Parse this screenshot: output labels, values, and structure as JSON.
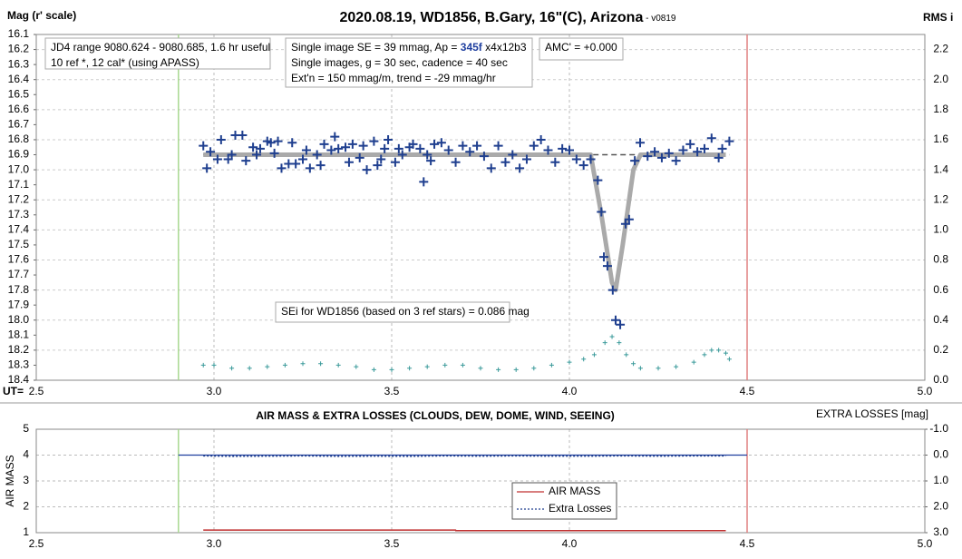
{
  "chart_data": [
    {
      "type": "scatter",
      "title": "2020.08.19, WD1856, B.Gary, 16\"(C), Arizona",
      "subtitle": " - v0819",
      "y_label": "Mag (r' scale)",
      "y2_label": "RMS i",
      "x_label": "UT=",
      "xlim": [
        2.5,
        5.0
      ],
      "xticks": [
        2.5,
        {
          "value": 3,
          "label": "3.0"
        },
        3.5,
        {
          "value": 4,
          "label": "4.0"
        },
        4.5,
        {
          "value": 5,
          "label": "5.0"
        }
      ],
      "ylim": [
        16.1,
        18.4
      ],
      "y_inverted": true,
      "yticks": [
        16.1,
        16.2,
        16.3,
        16.4,
        16.5,
        16.6,
        16.7,
        16.8,
        16.9,
        {
          "value": 17,
          "label": "17.0"
        },
        17.1,
        17.2,
        17.3,
        17.4,
        17.5,
        17.6,
        17.7,
        17.8,
        17.9,
        {
          "value": 18,
          "label": "18.0"
        },
        18.1,
        18.2,
        18.3,
        18.4
      ],
      "y2lim": [
        0,
        2.3
      ],
      "y2ticks": [
        {
          "value": 0,
          "label": "0.0"
        },
        0.2,
        0.4,
        0.6,
        0.8,
        {
          "value": 1,
          "label": "1.0"
        },
        1.2,
        1.4,
        1.6,
        1.8,
        {
          "value": 2,
          "label": "2.0"
        },
        2.2
      ],
      "grid": "y2",
      "vlines": [
        {
          "value": 2.9,
          "color": "#a8d890"
        },
        {
          "value": 4.5,
          "color": "#e08080"
        }
      ],
      "annotations": [
        {
          "lines": [
            [
              "JD4 range 9080.624 - 9080.685, 1.6 hr useful"
            ],
            [
              " 10 ref *, 12 cal* (using APASS)"
            ]
          ]
        },
        {
          "lines": [
            [
              "Single image SE = 39 mmag, Ap = ",
              "345f",
              " x4x12b3"
            ],
            [
              "Single images, g = 30 sec, cadence = 40 sec"
            ],
            [
              "Ext'n = 150 mmag/m, trend = -29 mmag/hr"
            ]
          ]
        },
        {
          "lines": [
            [
              "AMC' = +0.000"
            ]
          ]
        },
        {
          "lines": [
            [
              "SEi for WD1856 (based on 3 ref stars) = 0.086 mag"
            ]
          ]
        }
      ],
      "series": [
        {
          "color": "#555555",
          "line": "dashed",
          "width": 1.5,
          "x": [
            2.97,
            4.45
          ],
          "values": [
            16.9,
            16.9
          ]
        },
        {
          "color": "#aaaaaa",
          "line": "solid",
          "width": 5,
          "x": [
            2.97,
            4.06,
            4.09,
            4.12,
            4.13,
            4.15,
            4.18,
            4.2,
            4.44
          ],
          "values": [
            16.9,
            16.9,
            17.3,
            17.75,
            17.8,
            17.5,
            17.0,
            16.9,
            16.9
          ]
        },
        {
          "color": "#1f3f8f",
          "marker": "plus",
          "x": [
            2.97,
            2.98,
            2.99,
            3.01,
            3.02,
            3.04,
            3.05,
            3.06,
            3.08,
            3.09,
            3.11,
            3.12,
            3.13,
            3.15,
            3.16,
            3.17,
            3.18,
            3.19,
            3.21,
            3.22,
            3.23,
            3.25,
            3.26,
            3.27,
            3.29,
            3.3,
            3.31,
            3.33,
            3.34,
            3.35,
            3.37,
            3.38,
            3.39,
            3.41,
            3.42,
            3.43,
            3.45,
            3.46,
            3.47,
            3.48,
            3.49,
            3.51,
            3.52,
            3.53,
            3.55,
            3.56,
            3.58,
            3.59,
            3.6,
            3.61,
            3.62,
            3.64,
            3.66,
            3.68,
            3.7,
            3.72,
            3.74,
            3.76,
            3.78,
            3.8,
            3.82,
            3.84,
            3.86,
            3.88,
            3.9,
            3.92,
            3.94,
            3.96,
            3.98,
            4.0,
            4.02,
            4.04,
            4.06,
            4.08,
            4.09,
            4.097,
            4.107,
            4.122,
            4.13,
            4.143,
            4.158,
            4.168,
            4.184,
            4.199,
            4.22,
            4.24,
            4.26,
            4.28,
            4.3,
            4.32,
            4.34,
            4.36,
            4.38,
            4.4,
            4.42,
            4.43,
            4.45
          ],
          "values": [
            16.84,
            16.99,
            16.88,
            16.93,
            16.8,
            16.93,
            16.9,
            16.77,
            16.77,
            16.94,
            16.85,
            16.9,
            16.86,
            16.81,
            16.82,
            16.89,
            16.81,
            16.99,
            16.96,
            16.82,
            16.96,
            16.93,
            16.87,
            16.99,
            16.9,
            16.97,
            16.83,
            16.87,
            16.78,
            16.86,
            16.85,
            16.95,
            16.83,
            16.92,
            16.84,
            17.0,
            16.81,
            16.97,
            16.93,
            16.86,
            16.8,
            16.95,
            16.86,
            16.9,
            16.85,
            16.83,
            16.86,
            17.08,
            16.9,
            16.94,
            16.83,
            16.82,
            16.87,
            16.95,
            16.84,
            16.88,
            16.84,
            16.91,
            16.99,
            16.84,
            16.95,
            16.9,
            16.99,
            16.93,
            16.84,
            16.8,
            16.87,
            16.95,
            16.86,
            16.87,
            16.93,
            16.97,
            16.93,
            17.07,
            17.28,
            17.58,
            17.64,
            17.8,
            18.0,
            18.03,
            17.36,
            17.33,
            16.94,
            16.82,
            16.91,
            16.88,
            16.92,
            16.89,
            16.94,
            16.87,
            16.83,
            16.88,
            16.86,
            16.79,
            16.92,
            16.86,
            16.81
          ]
        },
        {
          "color": "#3a9a9a",
          "marker": "small-plus",
          "axis": "y2",
          "x": [
            2.97,
            3.0,
            3.05,
            3.1,
            3.15,
            3.2,
            3.25,
            3.3,
            3.35,
            3.4,
            3.45,
            3.5,
            3.55,
            3.6,
            3.65,
            3.7,
            3.75,
            3.8,
            3.85,
            3.9,
            3.95,
            4.0,
            4.04,
            4.07,
            4.1,
            4.12,
            4.14,
            4.16,
            4.18,
            4.2,
            4.25,
            4.3,
            4.35,
            4.38,
            4.4,
            4.42,
            4.44,
            4.45
          ],
          "values": [
            0.1,
            0.1,
            0.08,
            0.08,
            0.09,
            0.1,
            0.11,
            0.11,
            0.1,
            0.09,
            0.07,
            0.07,
            0.08,
            0.09,
            0.1,
            0.1,
            0.08,
            0.07,
            0.07,
            0.08,
            0.1,
            0.12,
            0.14,
            0.17,
            0.25,
            0.29,
            0.25,
            0.17,
            0.11,
            0.08,
            0.08,
            0.09,
            0.12,
            0.17,
            0.2,
            0.2,
            0.18,
            0.14
          ]
        }
      ]
    },
    {
      "type": "line",
      "title": "AIR MASS & EXTRA LOSSES (CLOUDS, DEW, DOME, WIND, SEEING)",
      "y_label": "AIR MASS",
      "y2_label": "EXTRA LOSSES [mag]",
      "xlim": [
        2.5,
        5.0
      ],
      "xticks": [
        2.5,
        {
          "value": 3,
          "label": "3.0"
        },
        3.5,
        {
          "value": 4,
          "label": "4.0"
        },
        4.5,
        {
          "value": 5,
          "label": "5.0"
        }
      ],
      "ylim": [
        1,
        5
      ],
      "yticks": [
        1,
        2,
        3,
        4,
        5
      ],
      "y2lim": [
        -1,
        3
      ],
      "y2_inverted": true,
      "y2ticks": [
        {
          "value": -1,
          "label": "-1.0"
        },
        {
          "value": 0,
          "label": "0.0"
        },
        {
          "value": 1,
          "label": "1.0"
        },
        {
          "value": 2,
          "label": "2.0"
        },
        {
          "value": 3,
          "label": "3.0"
        }
      ],
      "grid": "y",
      "vlines": [
        {
          "value": 2.9,
          "color": "#a8d890"
        },
        {
          "value": 4.5,
          "color": "#e08080"
        }
      ],
      "series": [
        {
          "color": "#1f3f9f",
          "line": "solid",
          "width": 1.2,
          "x": [
            2.9,
            4.5
          ],
          "values": [
            4,
            4
          ]
        },
        {
          "name": "AIR MASS",
          "color": "#c03030",
          "line": "solid",
          "width": 1.5,
          "x": [
            2.97,
            3.68,
            3.68,
            4.44
          ],
          "values": [
            1.1,
            1.1,
            1.08,
            1.08
          ]
        },
        {
          "name": "Extra Losses",
          "color": "#1f3f8f",
          "line": "dotted",
          "width": 2,
          "axis": "y2",
          "x": [
            2.97,
            3.05,
            3.15,
            3.25,
            3.35,
            3.45,
            3.55,
            3.65,
            3.75,
            3.85,
            3.95,
            4.05,
            4.15,
            4.25,
            4.35,
            4.44
          ],
          "values": [
            0.02,
            0.04,
            0.03,
            0.02,
            0.04,
            0.03,
            0.04,
            0.02,
            0.03,
            0.02,
            0.03,
            0.03,
            0.02,
            0.03,
            0.02,
            0.02
          ]
        }
      ]
    }
  ]
}
